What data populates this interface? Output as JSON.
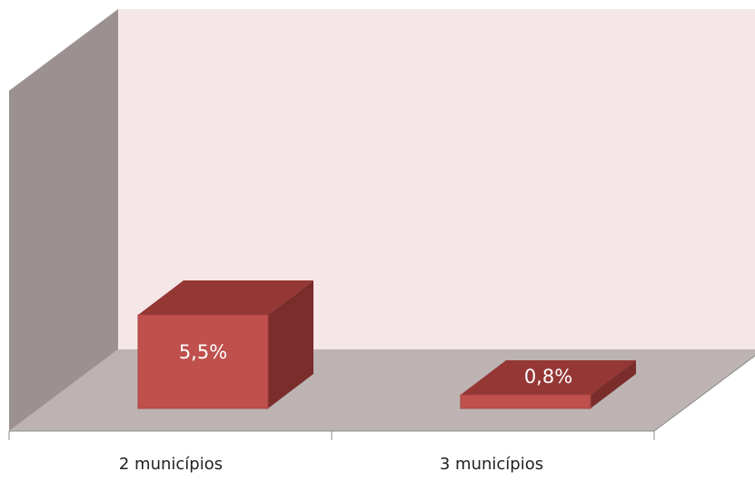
{
  "chart_data": {
    "type": "bar3d",
    "categories": [
      "2 municípios",
      "3 municípios"
    ],
    "values": [
      5.5,
      0.8
    ],
    "value_labels": [
      "5,5%",
      "0,8%"
    ],
    "color": "#c0504d"
  }
}
